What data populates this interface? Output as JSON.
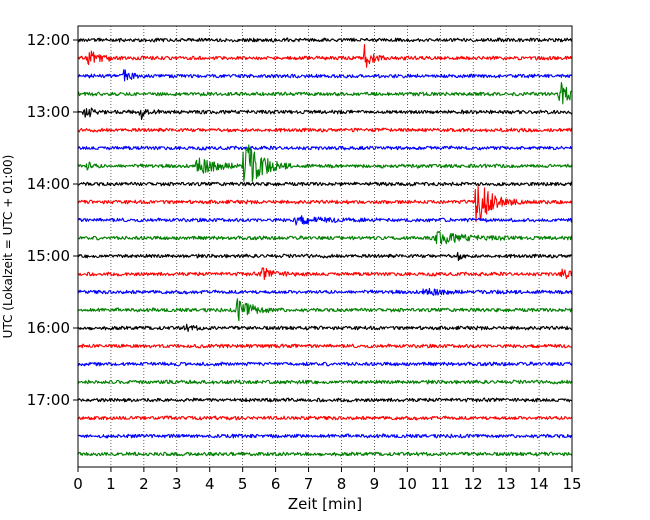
{
  "chart_data": {
    "type": "line",
    "subtype": "helicorder",
    "title": "",
    "xlabel": "Zeit  [min]",
    "ylabel": "UTC (Lokalzeit = UTC + 01:00)",
    "xlim": [
      0,
      15
    ],
    "x_ticks": [
      "0",
      "1",
      "2",
      "3",
      "4",
      "5",
      "6",
      "7",
      "8",
      "9",
      "10",
      "11",
      "12",
      "13",
      "14",
      "15"
    ],
    "y_tick_labels": [
      "12:00",
      "13:00",
      "14:00",
      "15:00",
      "16:00",
      "17:00"
    ],
    "grid": "vertical dotted lines at each minute",
    "trace_minutes": 15,
    "trace_count": 24,
    "trace_colors": [
      "#000000",
      "#ff0000",
      "#0000ff",
      "#008000"
    ],
    "traces": [
      {
        "start": "12:00",
        "color": "#000000",
        "events": []
      },
      {
        "start": "12:15",
        "color": "#ff0000",
        "events": [
          {
            "min": 0.3,
            "amp": 9,
            "dur": 0.7
          },
          {
            "min": 8.7,
            "amp": 13,
            "dur": 0.4
          }
        ]
      },
      {
        "start": "12:30",
        "color": "#0000ff",
        "events": [
          {
            "min": 1.4,
            "amp": 6,
            "dur": 0.4
          }
        ]
      },
      {
        "start": "12:45",
        "color": "#008000",
        "events": [
          {
            "min": 14.65,
            "amp": 12,
            "dur": 0.6
          }
        ]
      },
      {
        "start": "13:00",
        "color": "#000000",
        "events": [
          {
            "min": 0.2,
            "amp": 8,
            "dur": 0.4
          },
          {
            "min": 1.9,
            "amp": 7,
            "dur": 0.4
          }
        ]
      },
      {
        "start": "13:15",
        "color": "#ff0000",
        "events": []
      },
      {
        "start": "13:30",
        "color": "#0000ff",
        "events": []
      },
      {
        "start": "13:45",
        "color": "#008000",
        "events": [
          {
            "min": 3.6,
            "amp": 8,
            "dur": 1.4
          },
          {
            "min": 5.05,
            "amp": 30,
            "dur": 0.9
          },
          {
            "min": 0.3,
            "amp": 4,
            "dur": 0.3
          }
        ]
      },
      {
        "start": "14:00",
        "color": "#000000",
        "events": []
      },
      {
        "start": "14:15",
        "color": "#ff0000",
        "events": [
          {
            "min": 12.1,
            "amp": 24,
            "dur": 0.9
          }
        ]
      },
      {
        "start": "14:30",
        "color": "#0000ff",
        "events": [
          {
            "min": 6.6,
            "amp": 4,
            "dur": 1.6
          }
        ]
      },
      {
        "start": "14:45",
        "color": "#008000",
        "events": [
          {
            "min": 10.9,
            "amp": 6,
            "dur": 1.6
          }
        ]
      },
      {
        "start": "15:00",
        "color": "#000000",
        "events": [
          {
            "min": 11.5,
            "amp": 4,
            "dur": 0.3
          }
        ]
      },
      {
        "start": "15:15",
        "color": "#ff0000",
        "events": [
          {
            "min": 5.6,
            "amp": 5,
            "dur": 0.8
          },
          {
            "min": 14.7,
            "amp": 5,
            "dur": 0.5
          }
        ]
      },
      {
        "start": "15:30",
        "color": "#0000ff",
        "events": [
          {
            "min": 10.5,
            "amp": 3,
            "dur": 1.2
          }
        ]
      },
      {
        "start": "15:45",
        "color": "#008000",
        "events": [
          {
            "min": 4.85,
            "amp": 12,
            "dur": 0.9
          }
        ]
      },
      {
        "start": "16:00",
        "color": "#000000",
        "events": [
          {
            "min": 3.2,
            "amp": 3,
            "dur": 0.6
          }
        ]
      },
      {
        "start": "16:15",
        "color": "#ff0000",
        "events": []
      },
      {
        "start": "16:30",
        "color": "#0000ff",
        "events": []
      },
      {
        "start": "16:45",
        "color": "#008000",
        "events": []
      },
      {
        "start": "17:00",
        "color": "#000000",
        "events": []
      },
      {
        "start": "17:15",
        "color": "#ff0000",
        "events": []
      },
      {
        "start": "17:30",
        "color": "#0000ff",
        "events": []
      },
      {
        "start": "17:45",
        "color": "#008000",
        "events": []
      }
    ]
  }
}
